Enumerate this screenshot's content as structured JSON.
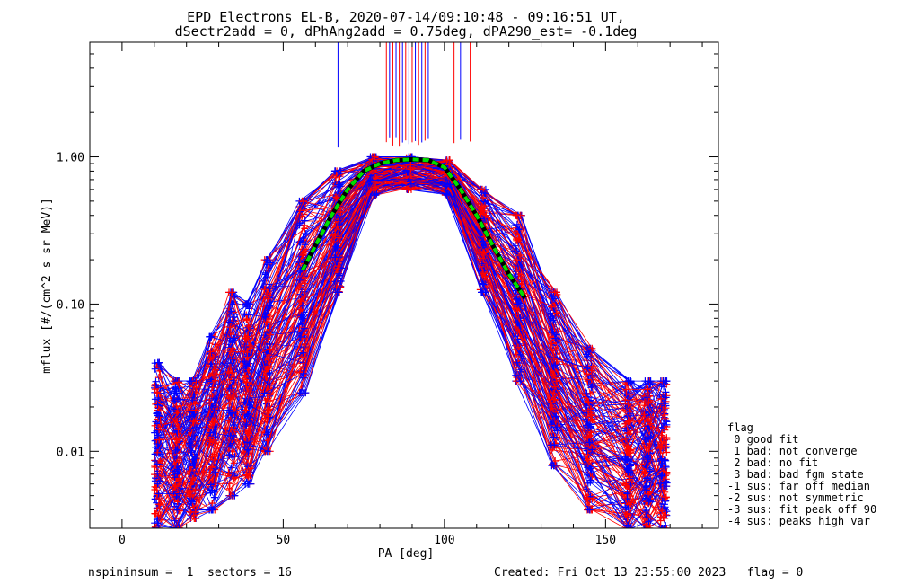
{
  "chart_data": {
    "type": "line",
    "title_line1": "EPD Electrons EL-B, 2020-07-14/09:10:48 - 09:16:51 UT,",
    "title_line2": "dSectr2add = 0, dPhAng2add = 0.75deg, dPA290_est=  -0.1deg",
    "xlabel": "PA [deg]",
    "ylabel": "mflux [#/(cm^2 s sr MeV)]",
    "xlim": [
      -10,
      185
    ],
    "ylim": [
      0.003,
      6
    ],
    "yscale": "log",
    "x_ticks": [
      0,
      50,
      100,
      150
    ],
    "x_tick_labels": [
      "0",
      "50",
      "100",
      "150"
    ],
    "y_ticks": [
      0.01,
      0.1,
      1.0
    ],
    "y_tick_labels": [
      "0.01",
      "0.10",
      "1.00"
    ],
    "series_colors": [
      "#0000ff",
      "#ff0000"
    ],
    "fit_color": "#00dd00",
    "fit_curve": {
      "x": [
        56,
        60,
        65,
        70,
        75,
        80,
        85,
        90,
        95,
        100,
        105,
        110,
        115,
        120,
        125
      ],
      "y": [
        0.17,
        0.25,
        0.4,
        0.6,
        0.8,
        0.9,
        0.95,
        0.96,
        0.95,
        0.85,
        0.6,
        0.4,
        0.25,
        0.16,
        0.11
      ]
    },
    "spike_lines_x": [
      67,
      82,
      83,
      84,
      85,
      86,
      87,
      88,
      89,
      90,
      91,
      92,
      93,
      94,
      95,
      103,
      105,
      108
    ],
    "bundle_pa": [
      11,
      17,
      22,
      28,
      34,
      39,
      45,
      56,
      67,
      78,
      89,
      101,
      112,
      123,
      134,
      145,
      157,
      163,
      168
    ],
    "bundle_flux_low": [
      0.003,
      0.003,
      0.0035,
      0.004,
      0.005,
      0.006,
      0.01,
      0.025,
      0.12,
      0.55,
      0.6,
      0.55,
      0.12,
      0.03,
      0.008,
      0.004,
      0.003,
      0.003,
      0.003
    ],
    "bundle_flux_high": [
      0.04,
      0.03,
      0.03,
      0.06,
      0.12,
      0.1,
      0.2,
      0.5,
      0.8,
      1.0,
      1.0,
      0.95,
      0.6,
      0.4,
      0.12,
      0.05,
      0.03,
      0.03,
      0.03
    ],
    "legend": {
      "title": "flag",
      "entries": [
        " 0 good fit",
        " 1 bad: not converge",
        " 2 bad: no fit",
        " 3 bad: bad fgm state",
        "-1 sus: far off median",
        "-2 sus: not symmetric",
        "-3 sus: fit peak off 90",
        "-4 sus: peaks high var"
      ]
    }
  },
  "footer": {
    "left": "nspininsum =  1  sectors = 16",
    "right": "Created: Fri Oct 13 23:55:00 2023   flag = 0"
  }
}
